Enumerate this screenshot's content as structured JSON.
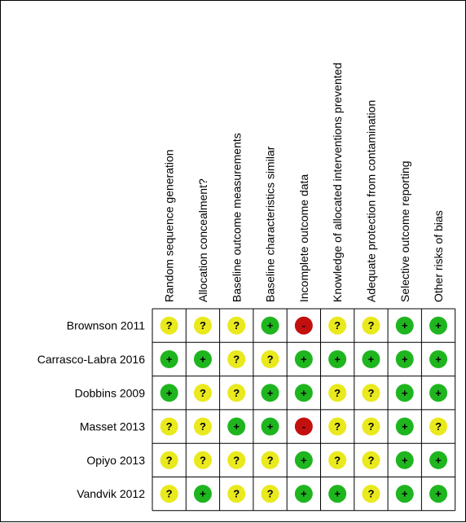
{
  "chart_data": {
    "type": "table",
    "columns": [
      "Random sequence generation",
      "Allocation concealment?",
      "Baseline outcome measurements",
      "Baseline characteristics similar",
      "Incomplete outcome data",
      "Knowledge of allocated interventions prevented",
      "Adequate protection from contamination",
      "Selective outcome reporting",
      "Other risks of bias"
    ],
    "rows": [
      {
        "study": "Brownson 2011",
        "ratings": [
          "?",
          "?",
          "?",
          "+",
          "-",
          "?",
          "?",
          "+",
          "+"
        ]
      },
      {
        "study": "Carrasco-Labra 2016",
        "ratings": [
          "+",
          "+",
          "?",
          "?",
          "+",
          "+",
          "+",
          "+",
          "+"
        ]
      },
      {
        "study": "Dobbins 2009",
        "ratings": [
          "+",
          "?",
          "?",
          "+",
          "+",
          "?",
          "?",
          "+",
          "+"
        ]
      },
      {
        "study": "Masset 2013",
        "ratings": [
          "?",
          "?",
          "+",
          "+",
          "-",
          "?",
          "?",
          "+",
          "?"
        ]
      },
      {
        "study": "Opiyo 2013",
        "ratings": [
          "?",
          "?",
          "?",
          "?",
          "+",
          "?",
          "?",
          "+",
          "+"
        ]
      },
      {
        "study": "Vandvik 2012",
        "ratings": [
          "?",
          "+",
          "?",
          "?",
          "+",
          "+",
          "?",
          "+",
          "+"
        ]
      }
    ],
    "symbols": {
      "+": {
        "label": "+",
        "color": "#1fb51f"
      },
      "?": {
        "label": "?",
        "color": "#e9e91d"
      },
      "-": {
        "label": "-",
        "color": "#c40f0f"
      }
    }
  }
}
